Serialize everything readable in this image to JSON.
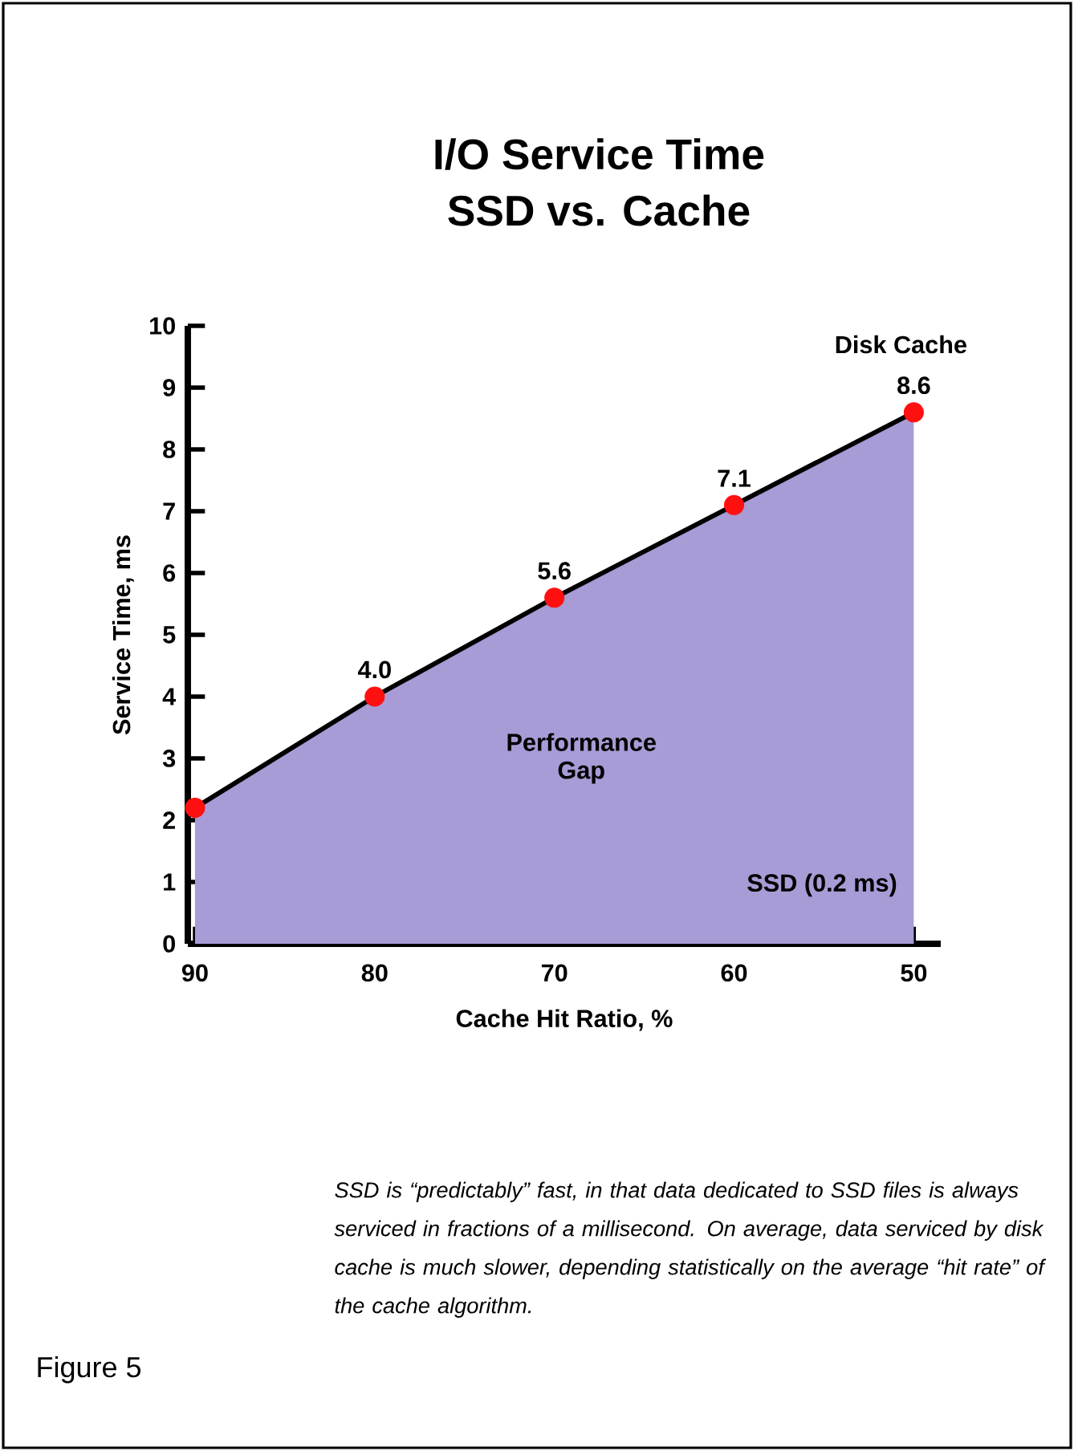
{
  "chart_data": {
    "type": "area",
    "title": "I/O Service Time",
    "subtitle": "SSD vs. Cache",
    "xlabel": "Cache Hit Ratio, %",
    "ylabel": "Service Time, ms",
    "x": [
      90,
      80,
      70,
      60,
      50
    ],
    "marker": "circle",
    "xlim": [
      90.4,
      48.5
    ],
    "xticks": [
      90,
      80,
      70,
      60,
      50
    ],
    "ylim": [
      0,
      10
    ],
    "yticks": [
      0,
      1,
      2,
      3,
      4,
      5,
      6,
      7,
      8,
      9,
      10
    ],
    "series": [
      {
        "color": "#a99bd6",
        "line_style": "solid",
        "marker": "none",
        "values": [
          2.2,
          4.0,
          5.6,
          7.1,
          8.6
        ]
      },
      {
        "type": "scatter",
        "color": "#ff1010",
        "values": [
          2.2,
          4.0,
          5.6,
          7.1,
          8.6
        ],
        "value_labels": [
          null,
          "4.0",
          "5.6",
          "7.1",
          "8.6"
        ]
      }
    ],
    "annotations": [
      {
        "text": "Disk Cache",
        "x": 50,
        "y": 8.6
      },
      "Performance Gap",
      "SSD (0.2 ms)",
      "SSD is “predictably” fast, in that data dedicated to SSD files is always serviced in fractions of a millisecond. On average, data serviced by disk cache is much slower, depending statistically on the average “hit rate” of the cache algorithm.",
      "Figure 5"
    ]
  }
}
